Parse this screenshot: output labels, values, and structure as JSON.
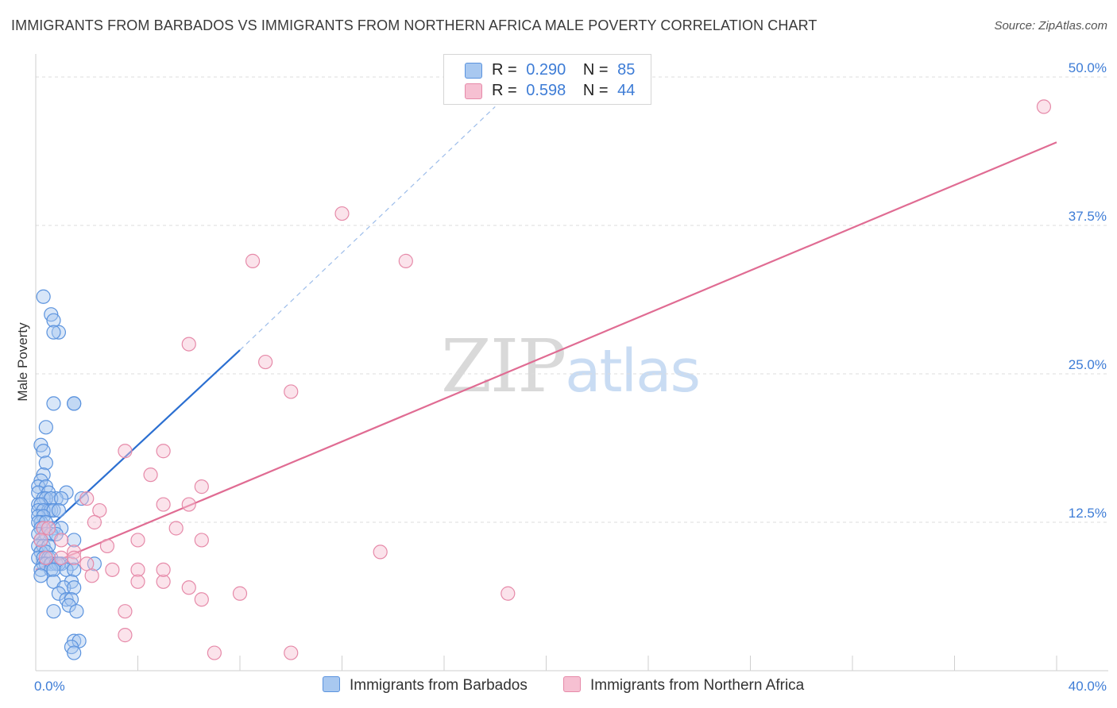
{
  "title": "IMMIGRANTS FROM BARBADOS VS IMMIGRANTS FROM NORTHERN AFRICA MALE POVERTY CORRELATION CHART",
  "source": "Source: ZipAtlas.com",
  "watermark": {
    "zip": "ZIP",
    "atlas": "atlas"
  },
  "legend_stats": [
    {
      "r_label": "R =",
      "r_value": "0.290",
      "n_label": "N =",
      "n_value": "85"
    },
    {
      "r_label": "R =",
      "r_value": "0.598",
      "n_label": "N =",
      "n_value": "44"
    }
  ],
  "colors": {
    "blue_fill": "#a8c8f0",
    "blue_stroke": "#5b93de",
    "blue_line": "#2b6fd1",
    "pink_fill": "#f6c0d2",
    "pink_stroke": "#e68aa9",
    "pink_line": "#e06c93",
    "axis_text": "#3d7cd6",
    "grid": "#dddddd"
  },
  "chart_data": {
    "type": "scatter",
    "title": "IMMIGRANTS FROM BARBADOS VS IMMIGRANTS FROM NORTHERN AFRICA MALE POVERTY CORRELATION CHART",
    "xlabel": "",
    "ylabel": "Male Poverty",
    "xlim": [
      0,
      40
    ],
    "ylim": [
      0,
      50
    ],
    "x_tick_labels": [
      "0.0%",
      "40.0%"
    ],
    "y_ticks": [
      12.5,
      25.0,
      37.5,
      50.0
    ],
    "y_tick_labels": [
      "12.5%",
      "25.0%",
      "37.5%",
      "50.0%"
    ],
    "grid": true,
    "legend_position": "bottom",
    "series": [
      {
        "name": "Immigrants from Barbados",
        "r": 0.29,
        "n": 85,
        "trend": {
          "x0": 0.0,
          "y0": 11.0,
          "x1": 8.0,
          "y1": 27.0,
          "dashed_to_x": 18.0,
          "dashed_to_y": 47.5
        },
        "points": [
          [
            0.3,
            31.5
          ],
          [
            0.6,
            30.0
          ],
          [
            0.7,
            29.5
          ],
          [
            0.9,
            28.5
          ],
          [
            0.7,
            28.5
          ],
          [
            0.7,
            22.5
          ],
          [
            1.5,
            22.5
          ],
          [
            1.5,
            22.5
          ],
          [
            0.4,
            20.5
          ],
          [
            0.2,
            19.0
          ],
          [
            0.3,
            18.5
          ],
          [
            0.4,
            17.5
          ],
          [
            0.3,
            16.5
          ],
          [
            0.2,
            16.0
          ],
          [
            0.1,
            15.5
          ],
          [
            0.4,
            15.5
          ],
          [
            0.1,
            15.0
          ],
          [
            0.5,
            15.0
          ],
          [
            1.2,
            15.0
          ],
          [
            0.8,
            14.5
          ],
          [
            0.3,
            14.5
          ],
          [
            0.4,
            14.5
          ],
          [
            0.6,
            14.5
          ],
          [
            1.0,
            14.5
          ],
          [
            1.8,
            14.5
          ],
          [
            0.1,
            14.0
          ],
          [
            0.2,
            14.0
          ],
          [
            0.1,
            13.5
          ],
          [
            0.5,
            13.5
          ],
          [
            0.6,
            13.5
          ],
          [
            0.3,
            13.5
          ],
          [
            0.7,
            13.5
          ],
          [
            0.9,
            13.5
          ],
          [
            0.1,
            13.0
          ],
          [
            0.3,
            13.0
          ],
          [
            0.2,
            12.5
          ],
          [
            0.1,
            12.5
          ],
          [
            0.4,
            12.5
          ],
          [
            0.2,
            12.0
          ],
          [
            0.3,
            12.0
          ],
          [
            0.7,
            12.0
          ],
          [
            1.0,
            12.0
          ],
          [
            0.1,
            11.5
          ],
          [
            0.4,
            11.5
          ],
          [
            0.6,
            11.5
          ],
          [
            0.8,
            11.5
          ],
          [
            0.2,
            11.0
          ],
          [
            1.5,
            11.0
          ],
          [
            0.1,
            10.5
          ],
          [
            0.3,
            10.5
          ],
          [
            0.5,
            10.5
          ],
          [
            0.2,
            10.0
          ],
          [
            0.4,
            10.0
          ],
          [
            0.1,
            9.5
          ],
          [
            0.3,
            9.5
          ],
          [
            0.5,
            9.5
          ],
          [
            0.6,
            9.5
          ],
          [
            0.3,
            9.0
          ],
          [
            0.4,
            9.0
          ],
          [
            0.6,
            9.0
          ],
          [
            0.8,
            9.0
          ],
          [
            1.0,
            9.0
          ],
          [
            1.4,
            9.0
          ],
          [
            0.9,
            9.0
          ],
          [
            2.3,
            9.0
          ],
          [
            0.2,
            8.5
          ],
          [
            0.6,
            8.5
          ],
          [
            0.7,
            8.5
          ],
          [
            1.2,
            8.5
          ],
          [
            1.5,
            8.5
          ],
          [
            0.2,
            8.0
          ],
          [
            0.7,
            7.5
          ],
          [
            1.4,
            7.5
          ],
          [
            1.1,
            7.0
          ],
          [
            1.5,
            7.0
          ],
          [
            0.9,
            6.5
          ],
          [
            1.2,
            6.0
          ],
          [
            1.4,
            6.0
          ],
          [
            1.3,
            5.5
          ],
          [
            0.7,
            5.0
          ],
          [
            1.6,
            5.0
          ],
          [
            1.5,
            2.5
          ],
          [
            1.7,
            2.5
          ],
          [
            1.4,
            2.0
          ],
          [
            1.5,
            1.5
          ]
        ]
      },
      {
        "name": "Immigrants from Northern Africa",
        "r": 0.598,
        "n": 44,
        "trend": {
          "x0": 0.0,
          "y0": 8.5,
          "x1": 40.0,
          "y1": 44.5
        },
        "points": [
          [
            39.5,
            47.5
          ],
          [
            12.0,
            38.5
          ],
          [
            14.5,
            34.5
          ],
          [
            8.5,
            34.5
          ],
          [
            6.0,
            27.5
          ],
          [
            9.0,
            26.0
          ],
          [
            10.0,
            23.5
          ],
          [
            3.5,
            18.5
          ],
          [
            5.0,
            18.5
          ],
          [
            4.5,
            16.5
          ],
          [
            6.5,
            15.5
          ],
          [
            2.0,
            14.5
          ],
          [
            5.0,
            14.0
          ],
          [
            6.0,
            14.0
          ],
          [
            2.5,
            13.5
          ],
          [
            2.3,
            12.5
          ],
          [
            5.5,
            12.0
          ],
          [
            0.3,
            12.0
          ],
          [
            0.5,
            12.0
          ],
          [
            4.0,
            11.0
          ],
          [
            6.5,
            11.0
          ],
          [
            2.8,
            10.5
          ],
          [
            0.2,
            11.0
          ],
          [
            1.0,
            11.0
          ],
          [
            1.5,
            10.0
          ],
          [
            13.5,
            10.0
          ],
          [
            2.0,
            9.0
          ],
          [
            1.0,
            9.5
          ],
          [
            1.5,
            9.5
          ],
          [
            0.4,
            9.5
          ],
          [
            4.0,
            8.5
          ],
          [
            5.0,
            7.5
          ],
          [
            5.0,
            8.5
          ],
          [
            3.0,
            8.5
          ],
          [
            2.2,
            8.0
          ],
          [
            4.0,
            7.5
          ],
          [
            6.0,
            7.0
          ],
          [
            8.0,
            6.5
          ],
          [
            18.5,
            6.5
          ],
          [
            6.5,
            6.0
          ],
          [
            3.5,
            5.0
          ],
          [
            3.5,
            3.0
          ],
          [
            7.0,
            1.5
          ],
          [
            10.0,
            1.5
          ]
        ]
      }
    ]
  }
}
